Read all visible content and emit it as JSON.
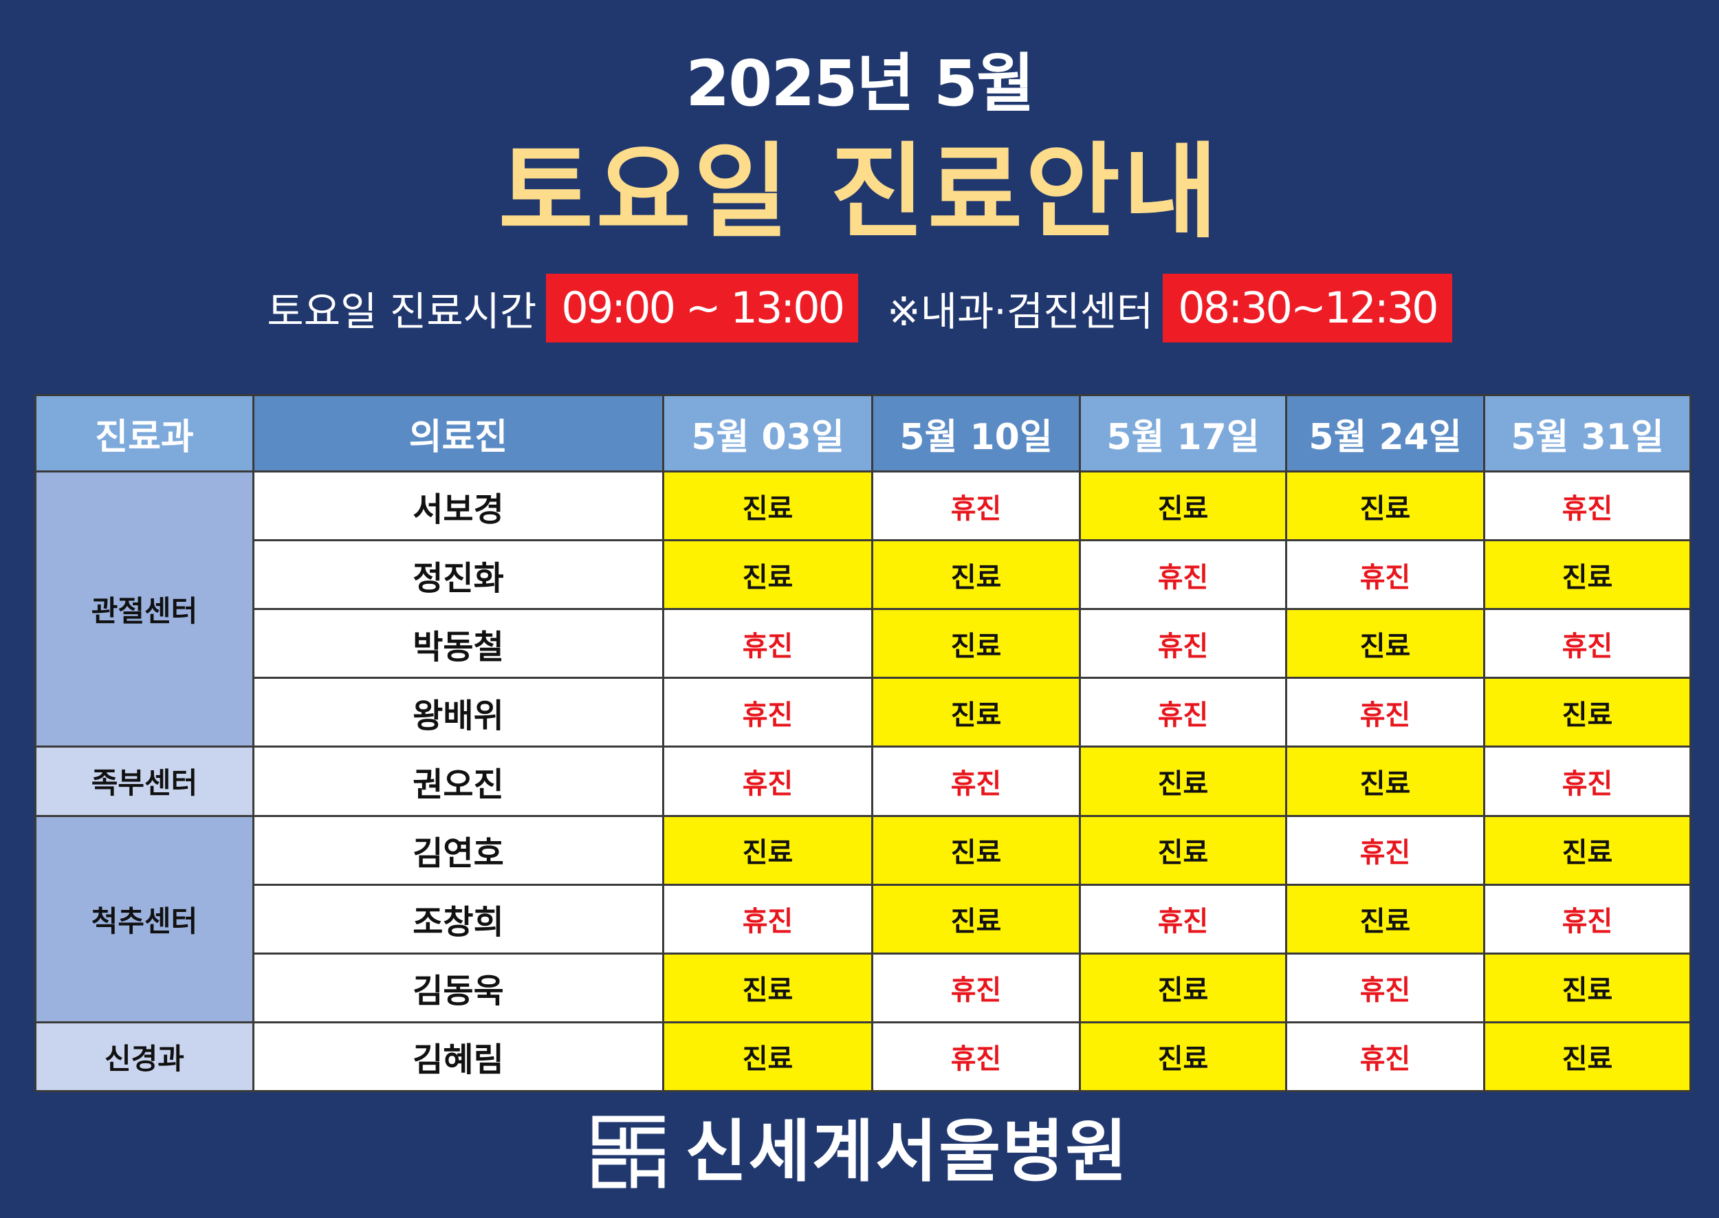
{
  "header": {
    "month": "2025년 5월",
    "title": "토요일 진료안내"
  },
  "hours": {
    "saturday_label": "토요일 진료시간",
    "saturday_time": "09:00 ~ 13:00",
    "internal_label": "※내과·검진센터",
    "internal_time": "08:30~12:30"
  },
  "table": {
    "headers": [
      "진료과",
      "의료진",
      "5월 03일",
      "5월 10일",
      "5월 17일",
      "5월 24일",
      "5월 31일"
    ],
    "departments": [
      "관절센터",
      "족부센터",
      "척추센터",
      "신경과"
    ],
    "rows": [
      {
        "doctor": "서보경",
        "status": [
          "진료",
          "휴진",
          "진료",
          "진료",
          "휴진"
        ]
      },
      {
        "doctor": "정진화",
        "status": [
          "진료",
          "진료",
          "휴진",
          "휴진",
          "진료"
        ]
      },
      {
        "doctor": "박동철",
        "status": [
          "휴진",
          "진료",
          "휴진",
          "진료",
          "휴진"
        ]
      },
      {
        "doctor": "왕배위",
        "status": [
          "휴진",
          "진료",
          "휴진",
          "휴진",
          "진료"
        ]
      },
      {
        "doctor": "권오진",
        "status": [
          "휴진",
          "휴진",
          "진료",
          "진료",
          "휴진"
        ]
      },
      {
        "doctor": "김연호",
        "status": [
          "진료",
          "진료",
          "진료",
          "휴진",
          "진료"
        ]
      },
      {
        "doctor": "조창희",
        "status": [
          "휴진",
          "진료",
          "휴진",
          "진료",
          "휴진"
        ]
      },
      {
        "doctor": "김동욱",
        "status": [
          "진료",
          "휴진",
          "진료",
          "휴진",
          "진료"
        ]
      },
      {
        "doctor": "김혜림",
        "status": [
          "진료",
          "휴진",
          "진료",
          "휴진",
          "진료"
        ]
      }
    ]
  },
  "footer": {
    "hospital_name": "신세계서울병원",
    "logo_icon": "hospital-logo-icon"
  },
  "colors": {
    "background": "#21386f",
    "title_yellow": "#fddc8b",
    "time_box_red": "#ee1c25",
    "open_yellow": "#fff200",
    "closed_red_text": "#e8151c",
    "header_blue": "#5b8bc5",
    "header_light_blue": "#7eaadb",
    "dept_dark": "#9bb2df",
    "dept_light": "#c9d5ef"
  }
}
